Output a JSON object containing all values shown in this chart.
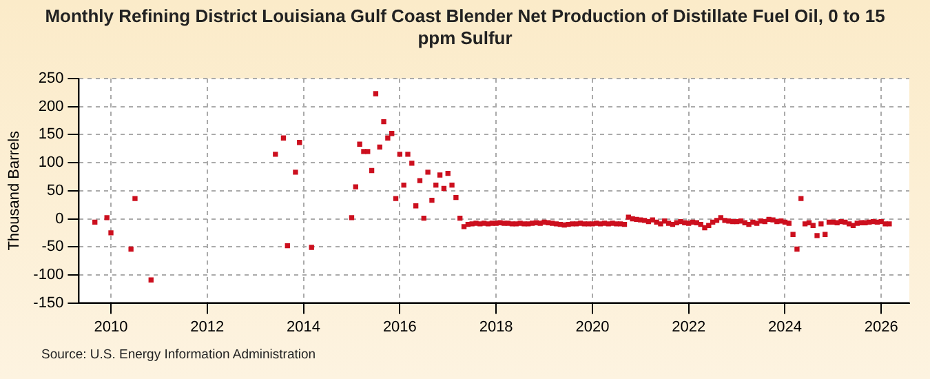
{
  "chart_data": {
    "type": "scatter",
    "title": "Monthly Refining District Louisiana Gulf Coast Blender Net Production of Distillate Fuel Oil, 0 to 15 ppm Sulfur",
    "ylabel": "Thousand Barrels",
    "annotations": [
      "Source: U.S. Energy Information Administration"
    ],
    "x": [
      "2009-09",
      "2009-12",
      "2010-01",
      "2010-06",
      "2010-07",
      "2010-11",
      "2013-06",
      "2013-08",
      "2013-09",
      "2013-11",
      "2013-12",
      "2014-03",
      "2015-01",
      "2015-02",
      "2015-03",
      "2015-04",
      "2015-05",
      "2015-06",
      "2015-07",
      "2015-08",
      "2015-09",
      "2015-10",
      "2015-11",
      "2015-12",
      "2016-01",
      "2016-02",
      "2016-03",
      "2016-04",
      "2016-05",
      "2016-06",
      "2016-07",
      "2016-08",
      "2016-09",
      "2016-10",
      "2016-11",
      "2016-12",
      "2017-01",
      "2017-02",
      "2017-03",
      "2017-04",
      "2017-05",
      "2017-06",
      "2017-07",
      "2017-08",
      "2017-09",
      "2017-10",
      "2017-11",
      "2017-12",
      "2018-01",
      "2018-02",
      "2018-03",
      "2018-04",
      "2018-05",
      "2018-06",
      "2018-07",
      "2018-08",
      "2018-09",
      "2018-10",
      "2018-11",
      "2018-12",
      "2019-01",
      "2019-02",
      "2019-03",
      "2019-04",
      "2019-05",
      "2019-06",
      "2019-07",
      "2019-08",
      "2019-09",
      "2019-10",
      "2019-11",
      "2019-12",
      "2020-01",
      "2020-02",
      "2020-03",
      "2020-04",
      "2020-05",
      "2020-06",
      "2020-07",
      "2020-08",
      "2020-09",
      "2020-10",
      "2020-11",
      "2020-12",
      "2021-01",
      "2021-02",
      "2021-03",
      "2021-04",
      "2021-05",
      "2021-06",
      "2021-07",
      "2021-08",
      "2021-09",
      "2021-10",
      "2021-11",
      "2021-12",
      "2022-01",
      "2022-02",
      "2022-03",
      "2022-04",
      "2022-05",
      "2022-06",
      "2022-07",
      "2022-08",
      "2022-09",
      "2022-10",
      "2022-11",
      "2022-12",
      "2023-01",
      "2023-02",
      "2023-03",
      "2023-04",
      "2023-05",
      "2023-06",
      "2023-07",
      "2023-08",
      "2023-09",
      "2023-10",
      "2023-11",
      "2023-12",
      "2024-01",
      "2024-02",
      "2024-03",
      "2024-04",
      "2024-05",
      "2024-06",
      "2024-07",
      "2024-08",
      "2024-09",
      "2024-10",
      "2024-11",
      "2024-12",
      "2025-01",
      "2025-02",
      "2025-03",
      "2025-04",
      "2025-05",
      "2025-06",
      "2025-07",
      "2025-08",
      "2025-09",
      "2025-10",
      "2025-11",
      "2025-12",
      "2026-01",
      "2026-02",
      "2026-03"
    ],
    "series": [
      {
        "color": "#cc0f1e",
        "values": [
          -6,
          2,
          -25,
          -54,
          36,
          -109,
          115,
          144,
          -48,
          83,
          136,
          -51,
          2,
          57,
          133,
          120,
          120,
          86,
          223,
          128,
          173,
          144,
          152,
          36,
          115,
          60,
          115,
          99,
          23,
          68,
          1,
          83,
          33,
          60,
          78,
          54,
          81,
          60,
          38,
          1,
          -14,
          -10,
          -9,
          -8,
          -9,
          -8,
          -9,
          -8,
          -8,
          -7,
          -8,
          -8,
          -9,
          -9,
          -8,
          -9,
          -9,
          -8,
          -7,
          -8,
          -6,
          -7,
          -8,
          -9,
          -10,
          -11,
          -10,
          -9,
          -9,
          -8,
          -9,
          -9,
          -9,
          -8,
          -9,
          -8,
          -9,
          -8,
          -9,
          -9,
          -10,
          3,
          0,
          -1,
          -2,
          -3,
          -5,
          -2,
          -6,
          -9,
          -4,
          -8,
          -10,
          -7,
          -5,
          -7,
          -8,
          -6,
          -7,
          -10,
          -16,
          -12,
          -6,
          -3,
          2,
          -3,
          -4,
          -5,
          -5,
          -4,
          -7,
          -10,
          -6,
          -8,
          -4,
          -5,
          -1,
          -2,
          -5,
          -4,
          -6,
          -8,
          -28,
          -54,
          36,
          -9,
          -7,
          -12,
          -30,
          -9,
          -28,
          -6,
          -6,
          -7,
          -5,
          -6,
          -9,
          -12,
          -8,
          -7,
          -7,
          -6,
          -5,
          -6,
          -5,
          -9,
          -9
        ]
      }
    ],
    "xlim": [
      "2009-05",
      "2026-08"
    ],
    "xticks": [
      "2010",
      "2012",
      "2014",
      "2016",
      "2018",
      "2020",
      "2022",
      "2024",
      "2026"
    ],
    "ylim": [
      -150,
      250
    ],
    "yticks": [
      -150,
      -100,
      -50,
      0,
      50,
      100,
      150,
      200,
      250
    ],
    "grid": true,
    "marker": "square",
    "legend": false
  }
}
